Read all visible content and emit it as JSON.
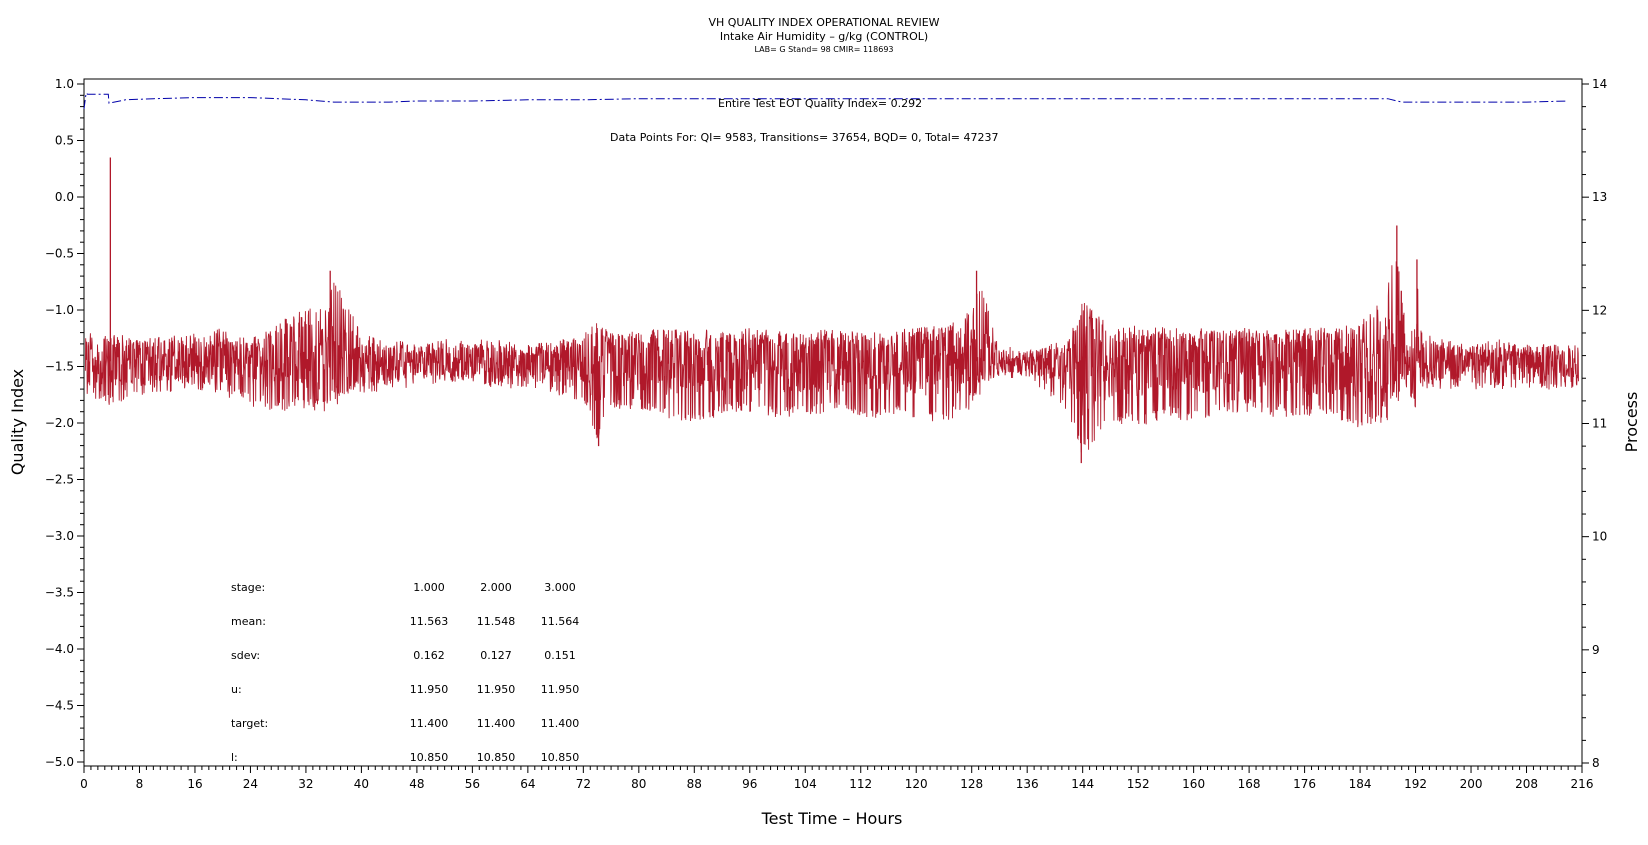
{
  "chart_data": {
    "type": "line",
    "title": "VH QUALITY INDEX OPERATIONAL REVIEW",
    "subtitle": "Intake Air Humidity – g/kg (CONTROL)",
    "subtitle2": "LAB= G Stand= 98 CMIR= 118693",
    "xlabel": "Test Time – Hours",
    "ylabel": "Quality Index",
    "y2label": "Process",
    "xlim": [
      0,
      216
    ],
    "ylim": [
      -5.0,
      1.0
    ],
    "y2lim": [
      8,
      14
    ],
    "x_ticks": [
      0,
      8,
      16,
      24,
      32,
      40,
      48,
      56,
      64,
      72,
      80,
      88,
      96,
      104,
      112,
      120,
      128,
      136,
      144,
      152,
      160,
      168,
      176,
      184,
      192,
      200,
      208,
      216
    ],
    "y_ticks": [
      1.0,
      0.5,
      0.0,
      -0.5,
      -1.0,
      -1.5,
      -2.0,
      -2.5,
      -3.0,
      -3.5,
      -4.0,
      -4.5,
      -5.0
    ],
    "y_tick_labels": [
      "1.0",
      "0.5",
      "0.0",
      "−0.5",
      "−1.0",
      "−1.5",
      "−2.0",
      "−2.5",
      "−3.0",
      "−3.5",
      "−4.0",
      "−4.5",
      "−5.0"
    ],
    "y2_ticks": [
      14,
      13,
      12,
      11,
      10,
      9,
      8
    ],
    "annotations": {
      "eot": "Entire Test EOT Quality Index=   0.292",
      "data_points": "Data Points For: QI=  9583, Transitions= 37654, BQD=     0, Total= 47237"
    },
    "stats_table": {
      "rows": [
        {
          "label": "stage:",
          "values": [
            "1.000",
            "2.000",
            "3.000"
          ]
        },
        {
          "label": "mean:",
          "values": [
            "11.563",
            "11.548",
            "11.564"
          ]
        },
        {
          "label": "sdev:",
          "values": [
            "0.162",
            "0.127",
            "0.151"
          ]
        },
        {
          "label": "u:",
          "values": [
            "11.950",
            "11.950",
            "11.950"
          ]
        },
        {
          "label": "target:",
          "values": [
            "11.400",
            "11.400",
            "11.400"
          ]
        },
        {
          "label": "l:",
          "values": [
            "10.850",
            "10.850",
            "10.850"
          ]
        }
      ]
    },
    "series": [
      {
        "name": "Quality Index",
        "color": "#0000aa",
        "style": "dash-dot",
        "x": [
          0,
          0.3,
          0.5,
          3.5,
          3.6,
          6,
          10,
          16,
          24,
          28,
          32,
          36,
          44,
          48,
          56,
          64,
          72,
          80,
          88,
          96,
          104,
          112,
          120,
          128,
          136,
          144,
          152,
          160,
          168,
          176,
          184,
          188,
          190,
          200,
          208,
          214
        ],
        "y": [
          0.78,
          0.92,
          0.91,
          0.91,
          0.83,
          0.86,
          0.87,
          0.88,
          0.88,
          0.87,
          0.86,
          0.84,
          0.84,
          0.85,
          0.85,
          0.86,
          0.86,
          0.87,
          0.87,
          0.87,
          0.87,
          0.87,
          0.87,
          0.87,
          0.87,
          0.87,
          0.87,
          0.87,
          0.87,
          0.87,
          0.87,
          0.87,
          0.84,
          0.84,
          0.84,
          0.85
        ]
      },
      {
        "name": "Process",
        "color": "#b0182a",
        "center": 11.55,
        "x": [
          0,
          4,
          8,
          16,
          20,
          24,
          28,
          32,
          35,
          36,
          40,
          44,
          48,
          52,
          56,
          60,
          64,
          68,
          72,
          74,
          76,
          80,
          84,
          88,
          92,
          96,
          100,
          104,
          108,
          112,
          116,
          120,
          124,
          128,
          129,
          132,
          136,
          140,
          143,
          144,
          148,
          152,
          156,
          160,
          164,
          168,
          172,
          176,
          180,
          184,
          186,
          188,
          189,
          190,
          191,
          192,
          193,
          196,
          200,
          204,
          208,
          212,
          215
        ],
        "hi": [
          11.8,
          11.8,
          11.75,
          11.8,
          11.85,
          11.7,
          11.9,
          12.05,
          12.0,
          12.3,
          11.8,
          11.75,
          11.7,
          11.75,
          11.75,
          11.75,
          11.7,
          11.75,
          11.8,
          11.9,
          11.8,
          11.8,
          11.85,
          11.75,
          11.8,
          11.85,
          11.8,
          11.8,
          11.85,
          11.75,
          11.8,
          11.85,
          11.85,
          12.0,
          12.3,
          11.7,
          11.65,
          11.7,
          11.75,
          12.1,
          11.85,
          11.8,
          11.85,
          11.8,
          11.85,
          11.85,
          11.8,
          11.85,
          11.85,
          11.9,
          12.0,
          12.2,
          12.6,
          12.2,
          11.6,
          12.4,
          11.8,
          11.75,
          11.7,
          11.75,
          11.7,
          11.7,
          11.7
        ],
        "lo": [
          11.25,
          11.15,
          11.25,
          11.3,
          11.25,
          11.15,
          11.1,
          11.1,
          11.1,
          11.2,
          11.25,
          11.3,
          11.3,
          11.35,
          11.35,
          11.3,
          11.3,
          11.25,
          11.2,
          10.85,
          11.1,
          11.1,
          11.05,
          11.0,
          11.05,
          11.1,
          11.05,
          11.05,
          11.1,
          11.05,
          11.05,
          11.05,
          11.0,
          11.1,
          11.35,
          11.4,
          11.4,
          11.2,
          10.9,
          10.7,
          11.0,
          10.95,
          11.05,
          11.0,
          11.1,
          11.1,
          11.05,
          11.05,
          11.05,
          10.95,
          11.0,
          11.0,
          11.25,
          11.35,
          11.2,
          11.1,
          11.3,
          11.3,
          11.3,
          11.3,
          11.3,
          11.3,
          11.3
        ],
        "spikes": [
          {
            "x": 3.8,
            "y": 13.35
          },
          {
            "x": 35.5,
            "y": 12.35
          },
          {
            "x": 74.2,
            "y": 10.8
          },
          {
            "x": 128.7,
            "y": 12.35
          },
          {
            "x": 143.8,
            "y": 10.65
          },
          {
            "x": 189.3,
            "y": 12.75
          },
          {
            "x": 192.2,
            "y": 12.45
          }
        ]
      }
    ]
  }
}
